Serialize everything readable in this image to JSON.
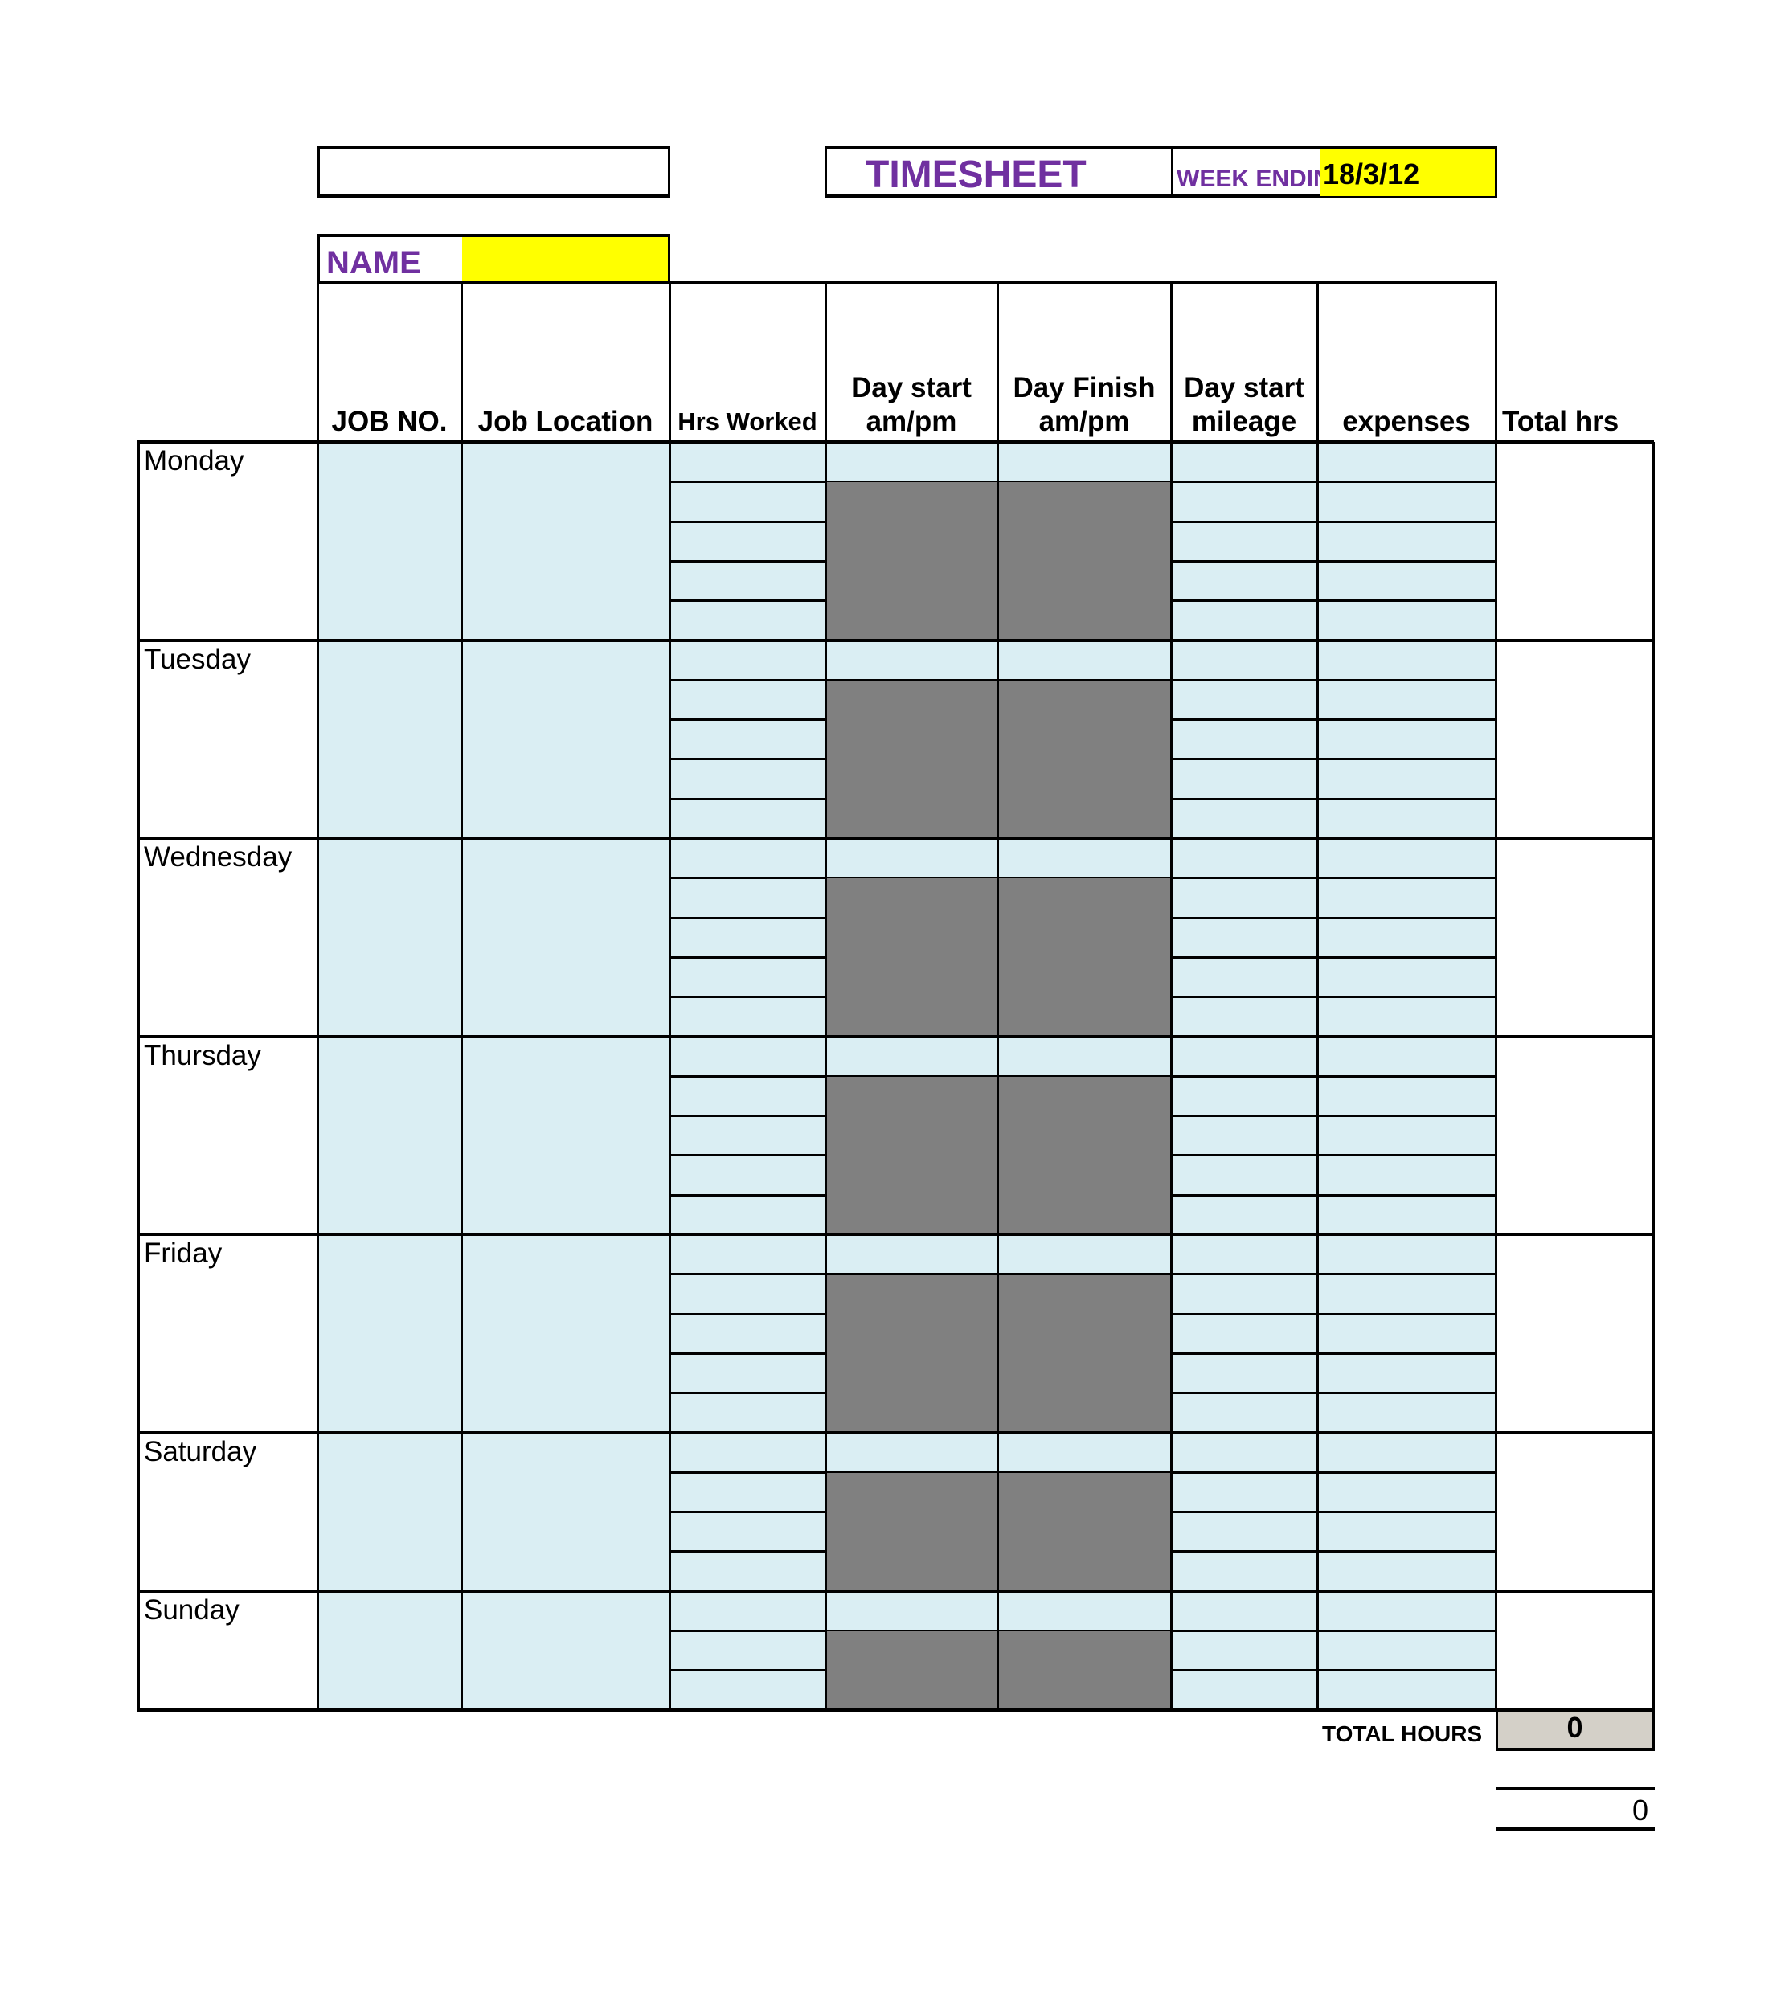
{
  "header": {
    "title": "TIMESHEET",
    "week_ending_label": "WEEK ENDING",
    "week_ending_value": "18/3/12",
    "name_label": "NAME",
    "name_value": "",
    "top_left_value": ""
  },
  "columns": [
    "",
    "JOB NO.",
    "Job Location",
    "Hrs Worked",
    "Day start am/pm",
    "Day Finish am/pm",
    "Day start mileage",
    "expenses",
    "Total hrs"
  ],
  "days": [
    {
      "label": "Monday",
      "rows": 5
    },
    {
      "label": "Tuesday",
      "rows": 5
    },
    {
      "label": "Wednesday",
      "rows": 5
    },
    {
      "label": "Thursday",
      "rows": 5
    },
    {
      "label": "Friday",
      "rows": 5
    },
    {
      "label": "Saturday",
      "rows": 4
    },
    {
      "label": "Sunday",
      "rows": 3
    }
  ],
  "totals": {
    "total_hours_label": "TOTAL HOURS",
    "total_hours_value": "0",
    "grand_value": "0"
  },
  "colors": {
    "input_fill": "#DAEEF3",
    "blocked_fill": "#808080",
    "highlight": "#FFFF00",
    "title": "#7030A0",
    "total_fill": "#D4D0C8"
  }
}
